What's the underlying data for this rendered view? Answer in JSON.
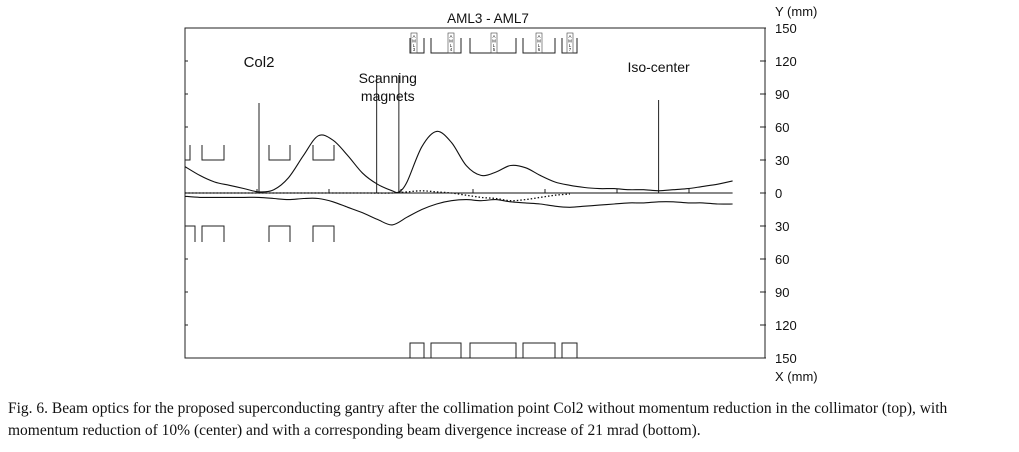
{
  "chart_data": {
    "type": "line",
    "title": "AML3 - AML7",
    "y_axis_label": "Y  (mm)",
    "x_axis_label": "X (mm)",
    "ylim": [
      -150,
      150
    ],
    "y_ticks": [
      {
        "value": 150,
        "label": "150"
      },
      {
        "value": 120,
        "label": "120"
      },
      {
        "value": 90,
        "label": "90"
      },
      {
        "value": 60,
        "label": "60"
      },
      {
        "value": 30,
        "label": "30"
      },
      {
        "value": 0,
        "label": "0"
      },
      {
        "value": -30,
        "label": "30"
      },
      {
        "value": -60,
        "label": "60"
      },
      {
        "value": -90,
        "label": "90"
      },
      {
        "value": -120,
        "label": "120"
      },
      {
        "value": -150,
        "label": "150"
      }
    ],
    "annotations": [
      {
        "text": "Col2",
        "x": 10
      },
      {
        "text": "Scanning",
        "x": 27.4
      },
      {
        "text": "magnets",
        "x": 27.4
      },
      {
        "text": "Iso-center",
        "x": 64
      }
    ],
    "marker_lines": [
      {
        "name": "col2",
        "x": 10,
        "y_top": 103
      },
      {
        "name": "scan-1",
        "x": 25.9,
        "y_top": 75
      },
      {
        "name": "scan-2",
        "x": 28.9,
        "y_top": 75
      },
      {
        "name": "iso",
        "x": 64,
        "y_top": 100
      }
    ],
    "aml_labels": [
      "AML3",
      "AML4",
      "AML5",
      "AML6",
      "AML7"
    ],
    "series": [
      {
        "style": "solid",
        "x": [
          0,
          2,
          4,
          6,
          8,
          10,
          12,
          14,
          16,
          18,
          20,
          22,
          24,
          26,
          28,
          28.9,
          30,
          32,
          34,
          36,
          38,
          40,
          42,
          44,
          46,
          48,
          50,
          52,
          54,
          56,
          58,
          60,
          62,
          64,
          66,
          68,
          70,
          72,
          74
        ],
        "y": [
          24,
          16,
          10,
          7,
          4,
          1,
          3,
          14,
          34,
          52,
          48,
          34,
          18,
          8,
          2,
          1,
          10,
          42,
          56,
          46,
          25,
          16,
          19,
          25,
          23,
          16,
          10,
          7,
          5,
          4,
          4,
          3,
          3,
          2,
          3,
          4,
          6,
          8,
          11
        ]
      },
      {
        "style": "solid",
        "x": [
          0,
          2,
          4,
          6,
          8,
          10,
          12,
          14,
          16,
          18,
          20,
          22,
          24,
          26,
          28,
          30,
          32,
          34,
          36,
          38,
          40,
          42,
          44,
          46,
          48,
          50,
          52,
          54,
          56,
          58,
          60,
          62,
          64,
          66,
          68,
          70,
          72,
          74
        ],
        "y": [
          -3,
          -4,
          -4,
          -4,
          -4,
          -4,
          -5,
          -6,
          -5,
          -5,
          -8,
          -13,
          -18,
          -24,
          -29,
          -22,
          -15,
          -10,
          -7,
          -6,
          -7,
          -6,
          -8,
          -9,
          -10,
          -12,
          -13,
          -12,
          -11,
          -10,
          -9,
          -9,
          -8,
          -8,
          -9,
          -9,
          -10,
          -10
        ]
      },
      {
        "style": "dotted",
        "x": [
          0,
          4,
          8,
          12,
          16,
          20,
          24,
          28,
          30,
          32,
          34,
          36,
          38,
          40,
          42,
          44,
          46,
          48,
          50,
          52
        ],
        "y": [
          0,
          0,
          0,
          0,
          0,
          0,
          0,
          0,
          1,
          2,
          1,
          0,
          -2,
          -4,
          -5,
          -7,
          -6,
          -4,
          -2,
          -1
        ]
      },
      {
        "style": "solid",
        "x": [
          0,
          74
        ],
        "y": [
          0,
          0
        ]
      }
    ]
  },
  "caption": "Fig. 6.  Beam optics for the proposed superconducting gantry after the collimation point Col2 without momentum reduction in the collimator (top), with momentum reduction of 10% (center) and with a corresponding beam divergence increase of 21 mrad (bottom)."
}
